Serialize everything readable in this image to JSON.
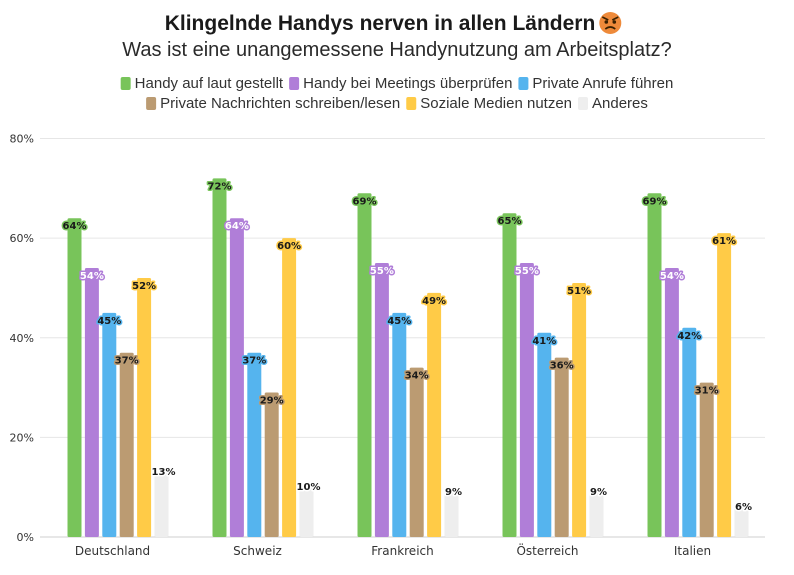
{
  "title": "Klingelnde Handys nerven in allen Ländern",
  "subtitle": "Was ist eine unangemessene Handynutzung am Arbeitsplatz?",
  "title_icon": "angry-face-icon",
  "chart_data": {
    "type": "bar",
    "categories": [
      "Deutschland",
      "Schweiz",
      "Frankreich",
      "Österreich",
      "Italien"
    ],
    "ylim": [
      0,
      80
    ],
    "yticks": [
      "0%",
      "20%",
      "40%",
      "60%",
      "80%"
    ],
    "ytick_values": [
      0,
      20,
      40,
      60,
      80
    ],
    "grid": true,
    "legend_position": "top",
    "series": [
      {
        "name": "Handy auf laut gestellt",
        "color": "#78c45a",
        "values": [
          64,
          72,
          69,
          65,
          69
        ]
      },
      {
        "name": "Handy bei Meetings überprüfen",
        "color": "#b07ed8",
        "values": [
          54,
          64,
          55,
          55,
          54
        ]
      },
      {
        "name": "Private Anrufe führen",
        "color": "#55b4ee",
        "values": [
          45,
          37,
          45,
          41,
          42
        ]
      },
      {
        "name": "Private Nachrichten schreiben/lesen",
        "color": "#bb9b72",
        "values": [
          37,
          29,
          34,
          36,
          31
        ]
      },
      {
        "name": "Soziale Medien nutzen",
        "color": "#ffcb47",
        "values": [
          52,
          60,
          49,
          51,
          61
        ]
      },
      {
        "name": "Anderes",
        "color": "#eeeeee",
        "values": [
          13,
          10,
          9,
          9,
          6
        ]
      }
    ]
  }
}
